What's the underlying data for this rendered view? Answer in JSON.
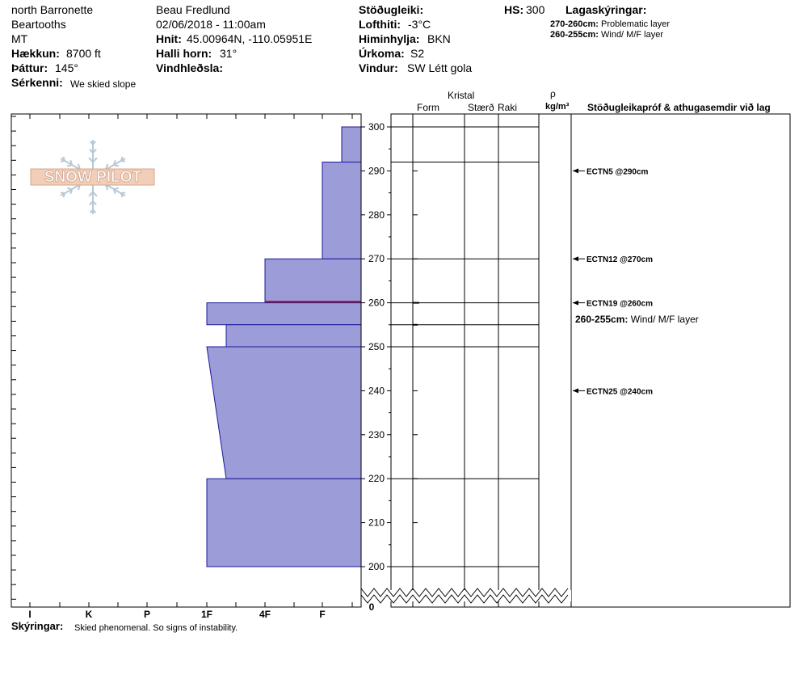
{
  "header": {
    "location": "north Barronette",
    "range": "Beartooths",
    "state": "MT",
    "elevation_label": "Hækkun:",
    "elevation_value": "8700 ft",
    "aspect_label": "Þáttur:",
    "aspect_value": "145°",
    "features_label": "Sérkenni:",
    "features_value": "We skied slope",
    "observer": "Beau  Fredlund",
    "datetime": "02/06/2018 - 11:00am",
    "coords_label": "Hnit:",
    "coords_value": "45.00964N, -110.05951E",
    "slope_label": "Halli horn:",
    "slope_value": "31°",
    "wind_loading_label": "Vindhleðsla:",
    "wind_loading_value": "",
    "stability_label": "Stöðugleiki:",
    "stability_value": "",
    "air_temp_label": "Lofthiti:",
    "air_temp_value": "-3°C",
    "sky_label": "Himinhylja:",
    "sky_value": "BKN",
    "precip_label": "Úrkoma:",
    "precip_value": "S2",
    "wind_label": "Vindur:",
    "wind_value": "SW Létt gola",
    "hs_label": "HS:",
    "hs_value": "300",
    "layer_notes_title": "Lagaskýringar:",
    "layer_notes": [
      {
        "range": "270-260cm:",
        "text": "Problematic layer"
      },
      {
        "range": "260-255cm:",
        "text": "Wind/ M/F layer"
      }
    ]
  },
  "logo": {
    "text": "SNOW PILOT"
  },
  "columns": {
    "crystal": "Kristal",
    "form": "Form",
    "size": "Stærð",
    "moisture": "Raki",
    "rho": "ρ",
    "density_unit": "kg/m³",
    "tests_title": "Stöðugleikapróf & athugasemdir við lag"
  },
  "hardness_axis": [
    "I",
    "K",
    "P",
    "1F",
    "4F",
    "F"
  ],
  "comments_label": "Skýringar:",
  "comments_value": "Skied phenomenal.  So signs of instability.",
  "accent_colors": {
    "hardness_fill": "#9c9cd8",
    "hardness_stroke": "#1a1a9a",
    "problem_layer": "#b01818"
  },
  "chart_data": {
    "type": "area",
    "ylim": [
      200,
      300
    ],
    "y_ticks": [
      200,
      210,
      220,
      230,
      240,
      250,
      260,
      270,
      280,
      290,
      300
    ],
    "y_break_label": "0",
    "x_categories": [
      "I",
      "K",
      "P",
      "1F",
      "4F",
      "F"
    ],
    "hardness_profile": [
      {
        "top": 300,
        "bottom": 292,
        "hardness_top": "F+",
        "hardness_bottom": "F+"
      },
      {
        "top": 292,
        "bottom": 270,
        "hardness_top": "F",
        "hardness_bottom": "F"
      },
      {
        "top": 270,
        "bottom": 260,
        "hardness_top": "4F",
        "hardness_bottom": "4F"
      },
      {
        "top": 260,
        "bottom": 255,
        "hardness_top": "1F",
        "hardness_bottom": "1F"
      },
      {
        "top": 255,
        "bottom": 250,
        "hardness_top": "1F-",
        "hardness_bottom": "1F-"
      },
      {
        "top": 250,
        "bottom": 220,
        "hardness_top": "1F",
        "hardness_bottom": "1F-"
      },
      {
        "top": 220,
        "bottom": 200,
        "hardness_top": "1F",
        "hardness_bottom": "1F"
      }
    ],
    "layer_boundaries": [
      300,
      292,
      270,
      260,
      255,
      250,
      220,
      200
    ],
    "problem_layer_depth": 260,
    "stability_tests": [
      {
        "depth": 290,
        "label": "ECTN5 @290cm"
      },
      {
        "depth": 270,
        "label": "ECTN12 @270cm"
      },
      {
        "depth": 260,
        "label": "ECTN19 @260cm"
      },
      {
        "depth": 240,
        "label": "ECTN25 @240cm"
      }
    ],
    "layer_comments": [
      {
        "depth": 258,
        "range": "260-255cm:",
        "text": "Wind/ M/F layer"
      }
    ]
  }
}
